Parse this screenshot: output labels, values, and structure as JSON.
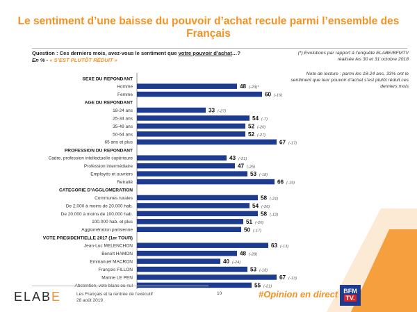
{
  "title": "Le sentiment d’une baisse du pouvoir d’achat recule parmi l’ensemble des Français",
  "question": {
    "prefix": "Question : Ces derniers mois, avez-vous le sentiment que ",
    "underlined": "votre pouvoir d’achat",
    "suffix": "…?",
    "unit": "En % - ",
    "answer": "« S’EST PLUTÔT RÉDUIT »"
  },
  "notes": {
    "evolution": "(*) Evolutions par rapport à l’enquête ELABE/BFMTV réalisée les 30 et 31 octobre 2018",
    "reading": "Note de lecture : parmi les 18-24 ans, 33% ont le sentiment que leur pouvoir d’achat s’est plutôt réduit ces derniers mois"
  },
  "footer": {
    "logo_main": "ELAB",
    "logo_accent": "E",
    "line1": "Les Français et la rentrée de l’exécutif",
    "line2": "28 août 2019",
    "page": "10",
    "hashtag": "#Opinion en direct",
    "bfm_top": "BFM",
    "bfm_bottom": "TV."
  },
  "colors": {
    "accent": "#f39223",
    "bar": "#1d3c8f",
    "evolution": "#555555"
  },
  "chart_data": {
    "type": "bar",
    "orientation": "horizontal",
    "xlim": [
      0,
      100
    ],
    "rows": [
      {
        "kind": "header",
        "label": "SEXE DU REPONDANT"
      },
      {
        "kind": "bar",
        "label": "Homme",
        "value": 48,
        "evolution": "(-23)*"
      },
      {
        "kind": "bar",
        "label": "Femme",
        "value": 60,
        "evolution": "(-16)"
      },
      {
        "kind": "header",
        "label": "AGE DU REPONDANT"
      },
      {
        "kind": "bar",
        "label": "18-24 ans",
        "value": 33,
        "evolution": "(-27)"
      },
      {
        "kind": "bar",
        "label": "25-34 ans",
        "value": 54,
        "evolution": "(-7)"
      },
      {
        "kind": "bar",
        "label": "35-49 ans",
        "value": 52,
        "evolution": "(-20)"
      },
      {
        "kind": "bar",
        "label": "50-64 ans",
        "value": 52,
        "evolution": "(-27)"
      },
      {
        "kind": "bar",
        "label": "65 ans et plus",
        "value": 67,
        "evolution": "(-17)"
      },
      {
        "kind": "header",
        "label": "PROFESSION DU REPONDANT"
      },
      {
        "kind": "bar",
        "label": "Cadre, profession intellectuelle supérieure",
        "value": 43,
        "evolution": "(-21)"
      },
      {
        "kind": "bar",
        "label": "Profession intermédiaire",
        "value": 47,
        "evolution": "(-26)"
      },
      {
        "kind": "bar",
        "label": "Employés et ouvriers",
        "value": 53,
        "evolution": "(-18)"
      },
      {
        "kind": "bar",
        "label": "Retraité",
        "value": 66,
        "evolution": "(-19)"
      },
      {
        "kind": "header",
        "label": "CATEGORIE D’AGGLOMERATION"
      },
      {
        "kind": "bar",
        "label": "Communes rurales",
        "value": 58,
        "evolution": "(-21)"
      },
      {
        "kind": "bar",
        "label": "De 2.000 à moins de 20.000 hab.",
        "value": 54,
        "evolution": "(-26)"
      },
      {
        "kind": "bar",
        "label": "De 20.000 à moins de 100.000 hab.",
        "value": 58,
        "evolution": "(-12)"
      },
      {
        "kind": "bar",
        "label": "100.000 hab. et plus",
        "value": 51,
        "evolution": "(-20)"
      },
      {
        "kind": "bar",
        "label": "Agglomération parisienne",
        "value": 50,
        "evolution": "(-17)"
      },
      {
        "kind": "header",
        "label": "VOTE PRESIDENTIELLE 2017 (1er TOUR)"
      },
      {
        "kind": "bar",
        "label": "Jean-Luc MELENCHON",
        "value": 63,
        "evolution": "(-13)"
      },
      {
        "kind": "bar",
        "label": "Benoît HAMON",
        "value": 48,
        "evolution": "(-28)"
      },
      {
        "kind": "bar",
        "label": "Emmanuel MACRON",
        "value": 40,
        "evolution": "(-24)"
      },
      {
        "kind": "bar",
        "label": "François FILLON",
        "value": 53,
        "evolution": "(-18)"
      },
      {
        "kind": "bar",
        "label": "Marine LE PEN",
        "value": 67,
        "evolution": "(-13)"
      },
      {
        "kind": "bar",
        "label": "Abstention, vote blanc ou nul",
        "value": 55,
        "evolution": "(-21)"
      }
    ]
  }
}
